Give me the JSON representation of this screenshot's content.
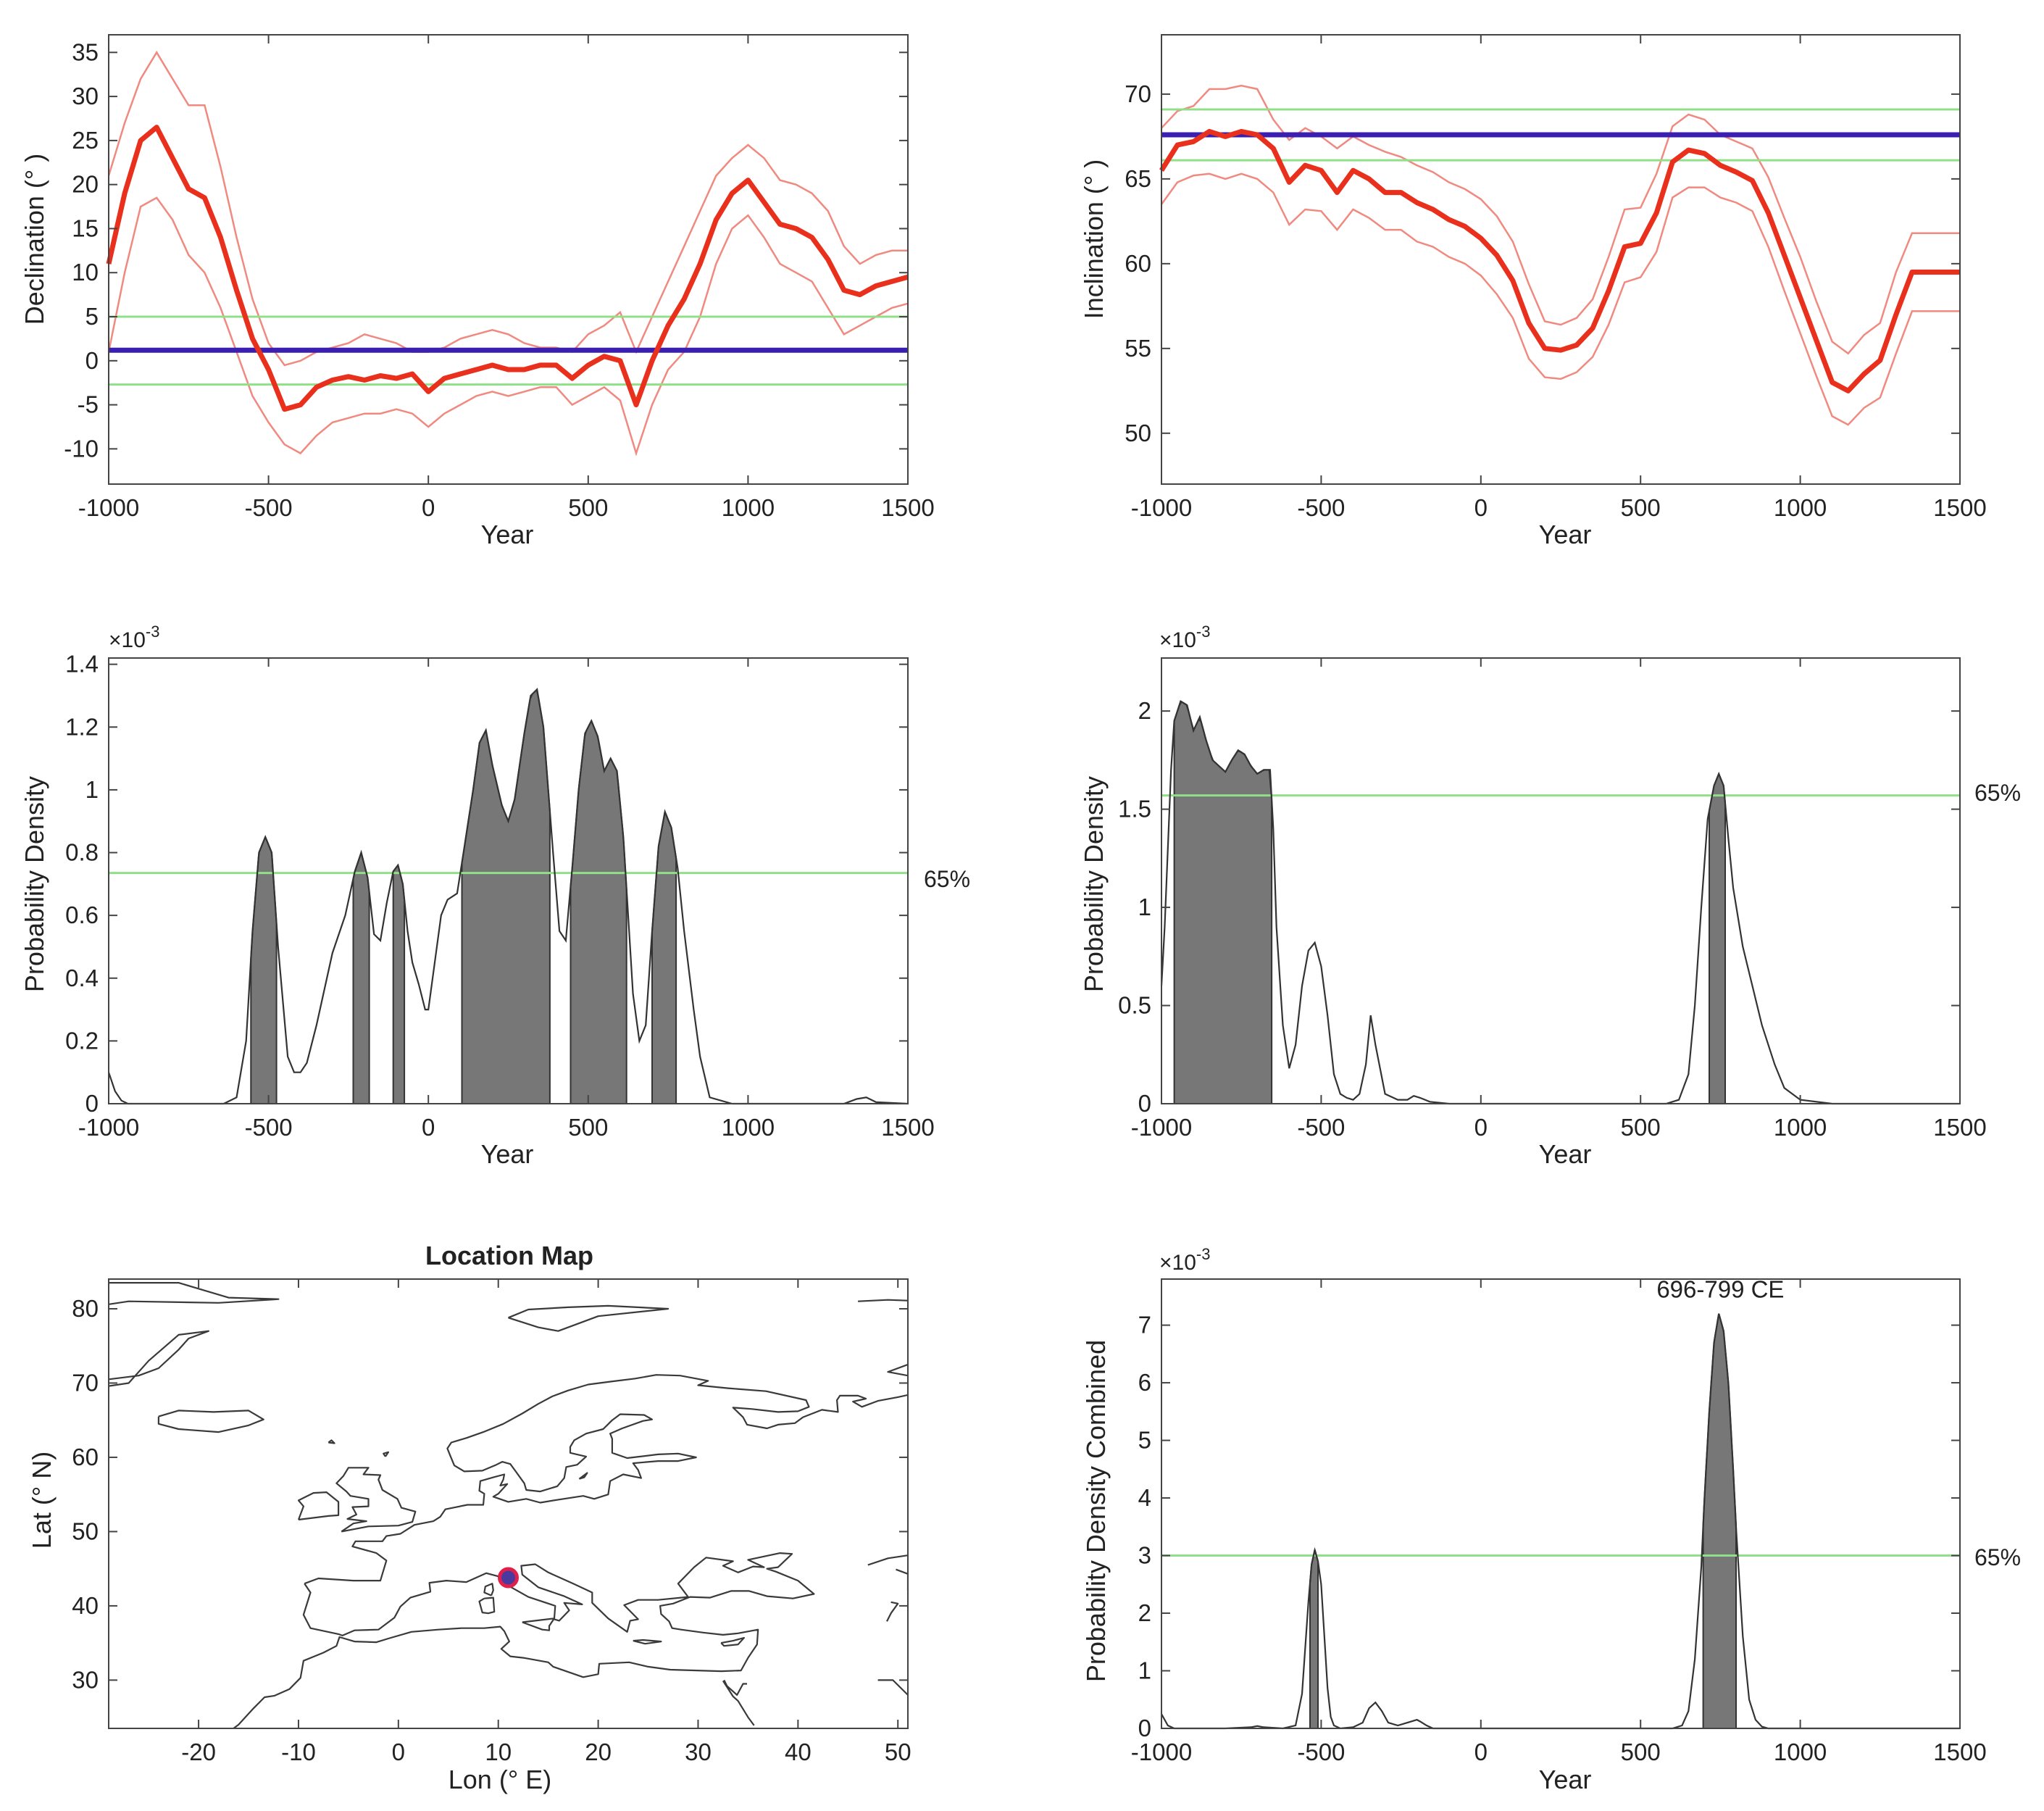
{
  "colors": {
    "curve": "#e8301c",
    "envelope": "#f08a80",
    "reference": "#3a1fb0",
    "band": "#90e08a",
    "fill": "#777777",
    "pdf_line": "#333333",
    "coast": "#3a3a3a",
    "site_outer": "#e0204a",
    "site_inner": "#4a3aa0"
  },
  "chart_data": [
    {
      "id": "declination",
      "type": "line",
      "xlabel": "Year",
      "ylabel": "Declination (° )",
      "xlim": [
        -1000,
        1500
      ],
      "ylim": [
        -14,
        37
      ],
      "xticks": [
        "-1000",
        "-500",
        "0",
        "500",
        "1000",
        "1500"
      ],
      "yticks": [
        "-10",
        "-5",
        "0",
        "5",
        "10",
        "15",
        "20",
        "25",
        "30",
        "35"
      ],
      "reference_line": 1.2,
      "band_lines": [
        5.0,
        -2.7
      ],
      "x": [
        -1000,
        -950,
        -900,
        -850,
        -800,
        -750,
        -700,
        -650,
        -600,
        -550,
        -500,
        -450,
        -400,
        -350,
        -300,
        -250,
        -200,
        -150,
        -100,
        -50,
        0,
        50,
        100,
        150,
        200,
        250,
        300,
        350,
        400,
        450,
        500,
        550,
        600,
        650,
        700,
        750,
        800,
        850,
        900,
        950,
        1000,
        1050,
        1100,
        1150,
        1200,
        1250,
        1300,
        1350,
        1400,
        1450,
        1500
      ],
      "series": [
        {
          "name": "curve",
          "values": [
            11,
            19,
            25,
            26.5,
            23,
            19.5,
            18.5,
            14,
            8,
            2.5,
            -1,
            -5.5,
            -5,
            -3,
            -2.2,
            -1.8,
            -2.2,
            -1.7,
            -2,
            -1.5,
            -3.5,
            -2,
            -1.5,
            -1,
            -0.5,
            -1,
            -1,
            -0.5,
            -0.5,
            -2,
            -0.5,
            0.5,
            0,
            -5,
            0,
            4,
            7,
            11,
            16,
            19,
            20.5,
            18,
            15.5,
            15,
            14,
            11.5,
            8,
            7.5,
            8.5,
            9,
            9.5
          ]
        },
        {
          "name": "upper",
          "values": [
            21,
            27,
            32,
            35,
            32,
            29,
            29,
            22,
            14,
            7,
            2,
            -0.5,
            0,
            1,
            1.5,
            2,
            3,
            2.5,
            2,
            1,
            1,
            1.5,
            2.5,
            3,
            3.5,
            3,
            2,
            1.5,
            1.5,
            1,
            3,
            4,
            5.5,
            1,
            5,
            9,
            13,
            17,
            21,
            23,
            24.5,
            23,
            20.5,
            20,
            19,
            17,
            13,
            11,
            12,
            12.5,
            12.5
          ]
        },
        {
          "name": "lower",
          "values": [
            1,
            10,
            17.5,
            18.5,
            16,
            12,
            10,
            6,
            1,
            -4,
            -7,
            -9.5,
            -10.5,
            -8.5,
            -7,
            -6.5,
            -6,
            -6,
            -5.5,
            -6,
            -7.5,
            -6,
            -5,
            -4,
            -3.5,
            -4,
            -3.5,
            -3,
            -3,
            -5,
            -4,
            -3,
            -4.5,
            -10.5,
            -5,
            -1,
            1,
            5,
            11,
            15,
            16.5,
            14,
            11,
            10,
            9,
            6,
            3,
            4,
            5,
            6,
            6.5
          ]
        }
      ]
    },
    {
      "id": "inclination",
      "type": "line",
      "xlabel": "Year",
      "ylabel": "Inclination (° )",
      "xlim": [
        -1000,
        1500
      ],
      "ylim": [
        47,
        73.5
      ],
      "xticks": [
        "-1000",
        "-500",
        "0",
        "500",
        "1000",
        "1500"
      ],
      "yticks": [
        "50",
        "55",
        "60",
        "65",
        "70"
      ],
      "reference_line": 67.6,
      "band_lines": [
        69.1,
        66.1
      ],
      "x": [
        -1000,
        -950,
        -900,
        -850,
        -800,
        -750,
        -700,
        -650,
        -600,
        -550,
        -500,
        -450,
        -400,
        -350,
        -300,
        -250,
        -200,
        -150,
        -100,
        -50,
        0,
        50,
        100,
        150,
        200,
        250,
        300,
        350,
        400,
        450,
        500,
        550,
        600,
        650,
        700,
        750,
        800,
        850,
        900,
        950,
        1000,
        1050,
        1100,
        1150,
        1200,
        1250,
        1300,
        1350,
        1400,
        1450,
        1500
      ],
      "series": [
        {
          "name": "curve",
          "values": [
            65.5,
            67,
            67.2,
            67.8,
            67.5,
            67.8,
            67.6,
            66.8,
            64.8,
            65.8,
            65.5,
            64.2,
            65.5,
            65,
            64.2,
            64.2,
            63.6,
            63.2,
            62.6,
            62.2,
            61.5,
            60.5,
            59,
            56.5,
            55,
            54.9,
            55.2,
            56.2,
            58.4,
            61,
            61.2,
            63,
            66,
            66.7,
            66.5,
            65.8,
            65.4,
            64.9,
            63,
            60.5,
            58,
            55.5,
            53,
            52.5,
            53.5,
            54.3,
            57,
            59.5,
            59.5,
            59.5,
            59.5
          ]
        },
        {
          "name": "upper",
          "values": [
            68,
            69,
            69.3,
            70.3,
            70.3,
            70.5,
            70.3,
            68.5,
            67.3,
            68,
            67.5,
            66.8,
            67.5,
            67,
            66.6,
            66.3,
            65.8,
            65.4,
            64.8,
            64.4,
            63.8,
            62.8,
            61.3,
            58.8,
            56.6,
            56.4,
            56.8,
            57.9,
            60.4,
            63.2,
            63.3,
            65.3,
            68.1,
            68.8,
            68.5,
            67.6,
            67.2,
            66.8,
            65.1,
            62.7,
            60.4,
            57.8,
            55.4,
            54.7,
            55.8,
            56.5,
            59.5,
            61.8,
            61.8,
            61.8,
            61.8
          ]
        },
        {
          "name": "lower",
          "values": [
            63.5,
            64.8,
            65.2,
            65.3,
            65,
            65.3,
            65,
            64.2,
            62.3,
            63.2,
            63.1,
            62,
            63.2,
            62.7,
            62,
            62,
            61.3,
            61,
            60.4,
            60,
            59.3,
            58.2,
            56.8,
            54.4,
            53.3,
            53.2,
            53.6,
            54.5,
            56.4,
            58.9,
            59.2,
            60.7,
            63.9,
            64.5,
            64.5,
            63.9,
            63.6,
            63.1,
            61,
            58.4,
            55.9,
            53.4,
            51,
            50.5,
            51.5,
            52.1,
            54.7,
            57.2,
            57.2,
            57.2,
            57.2
          ]
        }
      ]
    },
    {
      "id": "pdf_declination",
      "type": "area",
      "xlabel": "Year",
      "ylabel": "Probability Density",
      "exponent_label": "×10",
      "exponent_power": "-3",
      "xlim": [
        -1000,
        1500
      ],
      "ylim": [
        0,
        1.42
      ],
      "xticks": [
        "-1000",
        "-500",
        "0",
        "500",
        "1000",
        "1500"
      ],
      "yticks": [
        "0",
        "0.2",
        "0.4",
        "0.6",
        "0.8",
        "1",
        "1.2",
        "1.4"
      ],
      "threshold": 0.735,
      "threshold_label": "65%",
      "shaded_intervals": [
        [
          -555,
          -475
        ],
        [
          -235,
          -185
        ],
        [
          -110,
          -75
        ],
        [
          105,
          380
        ],
        [
          445,
          620
        ],
        [
          700,
          775
        ]
      ],
      "x": [
        -1000,
        -980,
        -960,
        -940,
        -900,
        -800,
        -700,
        -640,
        -600,
        -570,
        -550,
        -530,
        -510,
        -490,
        -470,
        -440,
        -420,
        -400,
        -380,
        -350,
        -300,
        -260,
        -230,
        -210,
        -190,
        -170,
        -150,
        -130,
        -110,
        -95,
        -80,
        -65,
        -50,
        -30,
        -10,
        0,
        20,
        40,
        60,
        90,
        110,
        140,
        160,
        180,
        200,
        230,
        250,
        270,
        300,
        320,
        340,
        360,
        390,
        410,
        430,
        450,
        470,
        490,
        510,
        530,
        550,
        570,
        590,
        610,
        640,
        660,
        680,
        700,
        720,
        740,
        760,
        780,
        800,
        830,
        850,
        880,
        950,
        1100,
        1300,
        1340,
        1370,
        1400,
        1500
      ],
      "values": [
        0.1,
        0.04,
        0.01,
        0,
        0,
        0,
        0,
        0,
        0.02,
        0.2,
        0.55,
        0.8,
        0.85,
        0.8,
        0.5,
        0.15,
        0.1,
        0.1,
        0.13,
        0.25,
        0.48,
        0.6,
        0.74,
        0.8,
        0.72,
        0.54,
        0.52,
        0.64,
        0.74,
        0.76,
        0.7,
        0.55,
        0.45,
        0.38,
        0.3,
        0.3,
        0.45,
        0.6,
        0.65,
        0.67,
        0.8,
        1.0,
        1.15,
        1.19,
        1.08,
        0.95,
        0.9,
        0.97,
        1.18,
        1.3,
        1.32,
        1.2,
        0.8,
        0.55,
        0.52,
        0.75,
        1.0,
        1.18,
        1.22,
        1.17,
        1.06,
        1.1,
        1.06,
        0.85,
        0.35,
        0.2,
        0.25,
        0.55,
        0.82,
        0.93,
        0.88,
        0.75,
        0.55,
        0.3,
        0.15,
        0.02,
        0,
        0,
        0,
        0.015,
        0.02,
        0.005,
        0
      ]
    },
    {
      "id": "pdf_inclination",
      "type": "area",
      "xlabel": "Year",
      "ylabel": "Probability Density",
      "exponent_label": "×10",
      "exponent_power": "-3",
      "xlim": [
        -1000,
        1500
      ],
      "ylim": [
        0,
        2.27
      ],
      "xticks": [
        "-1000",
        "-500",
        "0",
        "500",
        "1000",
        "1500"
      ],
      "yticks": [
        "0",
        "0.5",
        "1",
        "1.5",
        "2"
      ],
      "threshold": 1.57,
      "threshold_label": "65%",
      "shaded_intervals": [
        [
          -960,
          -655
        ],
        [
          715,
          765
        ]
      ],
      "x": [
        -1000,
        -990,
        -980,
        -970,
        -960,
        -940,
        -920,
        -900,
        -880,
        -860,
        -840,
        -820,
        -800,
        -780,
        -760,
        -740,
        -720,
        -700,
        -680,
        -660,
        -650,
        -640,
        -620,
        -600,
        -580,
        -560,
        -540,
        -520,
        -500,
        -480,
        -460,
        -440,
        -420,
        -400,
        -380,
        -360,
        -345,
        -330,
        -300,
        -260,
        -230,
        -210,
        -190,
        -160,
        -100,
        0,
        100,
        200,
        300,
        400,
        500,
        580,
        620,
        650,
        670,
        690,
        710,
        730,
        745,
        760,
        775,
        790,
        820,
        850,
        880,
        920,
        950,
        1000,
        1100,
        1500
      ],
      "values": [
        0.6,
        0.9,
        1.3,
        1.7,
        1.95,
        2.05,
        2.03,
        1.9,
        1.97,
        1.85,
        1.75,
        1.72,
        1.69,
        1.75,
        1.8,
        1.78,
        1.72,
        1.68,
        1.7,
        1.7,
        1.4,
        0.9,
        0.4,
        0.18,
        0.3,
        0.6,
        0.78,
        0.82,
        0.7,
        0.45,
        0.15,
        0.05,
        0.03,
        0.02,
        0.05,
        0.2,
        0.45,
        0.3,
        0.05,
        0.02,
        0.02,
        0.04,
        0.03,
        0.01,
        0,
        0,
        0,
        0,
        0,
        0,
        0,
        0,
        0.02,
        0.15,
        0.5,
        1.0,
        1.45,
        1.62,
        1.68,
        1.62,
        1.35,
        1.1,
        0.8,
        0.6,
        0.4,
        0.2,
        0.08,
        0.02,
        0,
        0
      ]
    },
    {
      "id": "location_map",
      "type": "map",
      "title": "Location Map",
      "xlabel": "Lon (° E)",
      "ylabel": "Lat (° N)",
      "xlim": [
        -29,
        51
      ],
      "ylim": [
        23.5,
        84
      ],
      "xticks": [
        "-20",
        "-10",
        "0",
        "10",
        "20",
        "30",
        "40",
        "50"
      ],
      "yticks": [
        "30",
        "40",
        "50",
        "60",
        "70",
        "80"
      ],
      "site": {
        "lon": 11,
        "lat": 43.8
      }
    },
    {
      "id": "pdf_combined",
      "type": "area",
      "xlabel": "Year",
      "ylabel": "Probability Density Combined",
      "exponent_label": "×10",
      "exponent_power": "-3",
      "xlim": [
        -1000,
        1500
      ],
      "ylim": [
        0,
        7.8
      ],
      "xticks": [
        "-1000",
        "-500",
        "0",
        "500",
        "1000",
        "1500"
      ],
      "yticks": [
        "0",
        "1",
        "2",
        "3",
        "4",
        "5",
        "6",
        "7"
      ],
      "threshold": 3.0,
      "threshold_label": "65%",
      "annotation": "696-799 CE",
      "shaded_intervals": [
        [
          -535,
          -510
        ],
        [
          696,
          799
        ]
      ],
      "x": [
        -1000,
        -990,
        -980,
        -960,
        -800,
        -720,
        -700,
        -680,
        -620,
        -580,
        -560,
        -540,
        -530,
        -520,
        -510,
        -500,
        -490,
        -480,
        -470,
        -460,
        -440,
        -400,
        -370,
        -350,
        -330,
        -310,
        -290,
        -260,
        -230,
        -200,
        -190,
        -170,
        -150,
        -100,
        0,
        300,
        600,
        630,
        650,
        670,
        690,
        700,
        715,
        730,
        745,
        760,
        775,
        790,
        800,
        820,
        840,
        860,
        880,
        900,
        1000,
        1500
      ],
      "values": [
        0.25,
        0.15,
        0.05,
        0,
        0,
        0.02,
        0.04,
        0.02,
        0,
        0.05,
        0.6,
        2.2,
        2.85,
        3.1,
        2.9,
        2.5,
        1.6,
        0.7,
        0.2,
        0.05,
        0,
        0.02,
        0.1,
        0.35,
        0.45,
        0.3,
        0.1,
        0.05,
        0.1,
        0.15,
        0.12,
        0.05,
        0,
        0,
        0,
        0,
        0,
        0.05,
        0.3,
        1.2,
        2.8,
        4.0,
        5.5,
        6.7,
        7.2,
        6.9,
        6.0,
        4.5,
        3.4,
        1.6,
        0.5,
        0.15,
        0.03,
        0,
        0,
        0
      ]
    }
  ]
}
